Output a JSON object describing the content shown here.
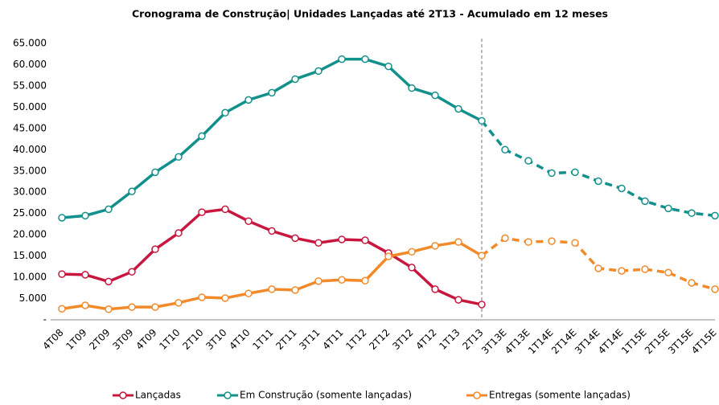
{
  "chart_data": {
    "type": "line",
    "title": "Cronograma de Construção|  Unidades Lançadas até 2T13 - Acumulado em 12 meses",
    "categories": [
      "4T08",
      "1T09",
      "2T09",
      "3T09",
      "4T09",
      "1T10",
      "2T10",
      "3T10",
      "4T10",
      "1T11",
      "2T11",
      "3T11",
      "4T11",
      "1T12",
      "2T12",
      "3T12",
      "4T12",
      "1T13",
      "2T13",
      "3T13E",
      "4T13E",
      "1T14E",
      "2T14E",
      "3T14E",
      "4T14E",
      "1T15E",
      "2T15E",
      "3T15E",
      "4T15E"
    ],
    "series": [
      {
        "name": "Lançadas",
        "color": "#c8173f",
        "values": [
          10750,
          10600,
          9000,
          11300,
          16600,
          20400,
          25300,
          26000,
          23200,
          20900,
          19200,
          18100,
          18900,
          18700,
          15700,
          12300,
          7200,
          4700,
          3600,
          null,
          null,
          null,
          null,
          null,
          null,
          null,
          null,
          null,
          null
        ]
      },
      {
        "name": "Em Construção (somente lançadas)",
        "color": "#12908b",
        "values": [
          24000,
          24500,
          26000,
          30200,
          34700,
          38300,
          43200,
          48700,
          51700,
          53400,
          56600,
          58500,
          61300,
          61300,
          59600,
          54500,
          52800,
          49600,
          46800,
          40000,
          37400,
          34500,
          34700,
          32600,
          30900,
          27900,
          26200,
          25100,
          24500
        ]
      },
      {
        "name": "Entregas  (somente lançadas)",
        "color": "#f28a2a",
        "values": [
          2600,
          3400,
          2500,
          3000,
          3000,
          4000,
          5300,
          5100,
          6200,
          7200,
          7000,
          9100,
          9400,
          9200,
          14900,
          16000,
          17400,
          18300,
          15100,
          19200,
          18300,
          18500,
          18100,
          12100,
          11500,
          11900,
          11100,
          8700,
          7200
        ]
      }
    ],
    "ylim": [
      0,
      65000
    ],
    "yticks": [
      {
        "value": 0,
        "label": "-"
      },
      {
        "value": 5000,
        "label": "5.000"
      },
      {
        "value": 10000,
        "label": "10.000"
      },
      {
        "value": 15000,
        "label": "15.000"
      },
      {
        "value": 20000,
        "label": "20.000"
      },
      {
        "value": 25000,
        "label": "25.000"
      },
      {
        "value": 30000,
        "label": "30.000"
      },
      {
        "value": 35000,
        "label": "35.000"
      },
      {
        "value": 40000,
        "label": "40.000"
      },
      {
        "value": 45000,
        "label": "45.000"
      },
      {
        "value": 50000,
        "label": "50.000"
      },
      {
        "value": 55000,
        "label": "55.000"
      },
      {
        "value": 60000,
        "label": "60.000"
      },
      {
        "value": 65000,
        "label": "65.000"
      }
    ]
  }
}
